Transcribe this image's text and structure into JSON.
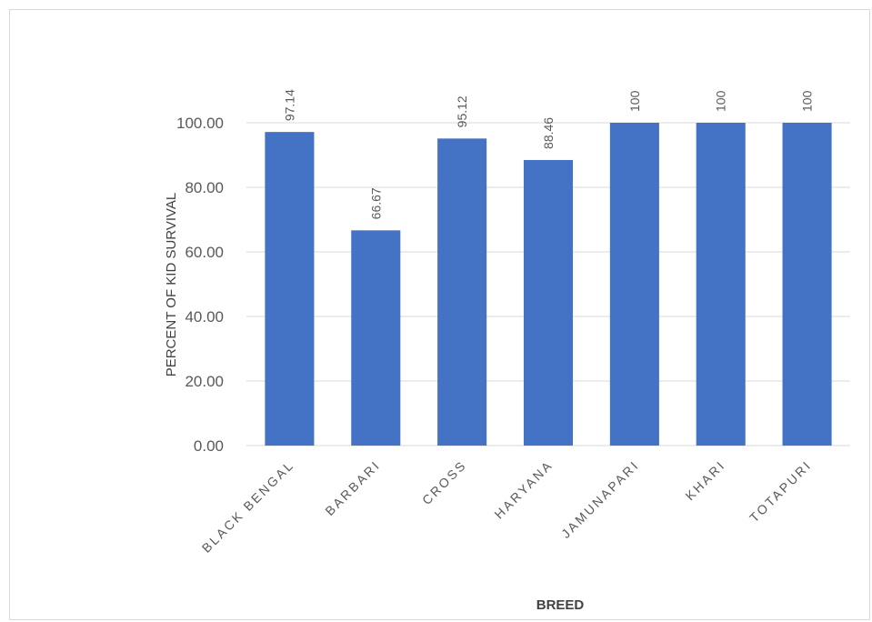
{
  "chart_data": {
    "type": "bar",
    "categories": [
      "BLACK BENGAL",
      "BARBARI",
      "CROSS",
      "HARYANA",
      "JAMUNAPARI",
      "KHARI",
      "TOTAPURI"
    ],
    "values": [
      97.14,
      66.67,
      95.12,
      88.46,
      100,
      100,
      100
    ],
    "data_labels": [
      "97.14",
      "66.67",
      "95.12",
      "88.46",
      "100",
      "100",
      "100"
    ],
    "title": "",
    "xlabel": "BREED",
    "ylabel": "PERCENT OF KID SURVIVAL",
    "ylim": [
      0,
      100
    ],
    "yticks": [
      "0.00",
      "20.00",
      "40.00",
      "60.00",
      "80.00",
      "100.00"
    ],
    "grid": true,
    "legend": "none",
    "bar_color": "#4472c4",
    "grid_color": "#d9d9d9"
  }
}
